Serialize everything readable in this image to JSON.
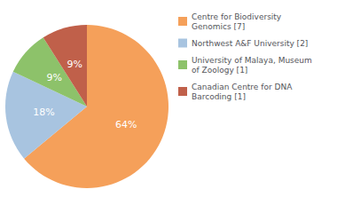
{
  "chart_data": {
    "type": "pie",
    "categories": [
      "Centre for Biodiversity\nGenomics [7]",
      "Northwest A&F University [2]",
      "University of Malaya, Museum\nof Zoology [1]",
      "Canadian Centre for DNA\nBarcoding [1]"
    ],
    "values": [
      64,
      18,
      9,
      9
    ],
    "value_labels": [
      "64%",
      "18%",
      "9%",
      "9%"
    ],
    "colors": [
      "#F5A05A",
      "#A8C4E0",
      "#8DC26A",
      "#C0604A"
    ],
    "data_labels": true,
    "legend": "upper right"
  }
}
